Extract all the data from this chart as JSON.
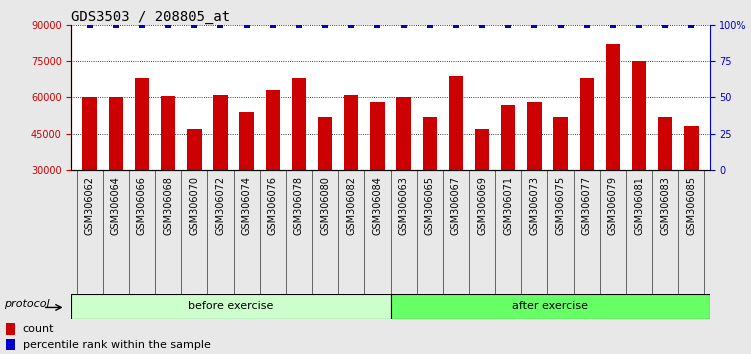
{
  "title": "GDS3503 / 208805_at",
  "categories": [
    "GSM306062",
    "GSM306064",
    "GSM306066",
    "GSM306068",
    "GSM306070",
    "GSM306072",
    "GSM306074",
    "GSM306076",
    "GSM306078",
    "GSM306080",
    "GSM306082",
    "GSM306084",
    "GSM306063",
    "GSM306065",
    "GSM306067",
    "GSM306069",
    "GSM306071",
    "GSM306073",
    "GSM306075",
    "GSM306077",
    "GSM306079",
    "GSM306081",
    "GSM306083",
    "GSM306085"
  ],
  "values": [
    60000,
    60000,
    68000,
    60500,
    47000,
    61000,
    54000,
    63000,
    68000,
    52000,
    61000,
    58000,
    60000,
    52000,
    69000,
    47000,
    57000,
    58000,
    52000,
    68000,
    82000,
    75000,
    52000,
    48000
  ],
  "percentile_values": [
    100,
    100,
    100,
    100,
    100,
    100,
    100,
    100,
    100,
    100,
    100,
    100,
    100,
    100,
    100,
    100,
    100,
    100,
    100,
    100,
    100,
    100,
    100,
    100
  ],
  "bar_color": "#cc0000",
  "percentile_color": "#0000cc",
  "ylim_left": [
    30000,
    90000
  ],
  "ylim_right": [
    0,
    100
  ],
  "yticks_left": [
    30000,
    45000,
    60000,
    75000,
    90000
  ],
  "yticks_right": [
    0,
    25,
    50,
    75,
    100
  ],
  "before_exercise_count": 12,
  "after_exercise_count": 12,
  "protocol_label": "protocol",
  "before_label": "before exercise",
  "after_label": "after exercise",
  "before_color": "#ccffcc",
  "after_color": "#66ff66",
  "legend_count_label": "count",
  "legend_percentile_label": "percentile rank within the sample",
  "title_fontsize": 10,
  "tick_fontsize": 7,
  "label_fontsize": 8,
  "bar_width": 0.55,
  "fig_bg": "#e8e8e8",
  "plot_bg": "#ffffff",
  "xtick_bg": "#c8c8c8"
}
